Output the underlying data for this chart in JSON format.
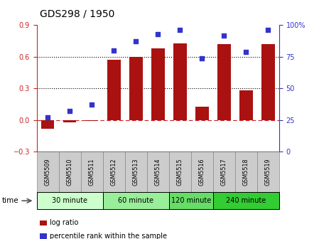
{
  "title": "GDS298 / 1950",
  "samples": [
    "GSM5509",
    "GSM5510",
    "GSM5511",
    "GSM5512",
    "GSM5513",
    "GSM5514",
    "GSM5515",
    "GSM5516",
    "GSM5517",
    "GSM5518",
    "GSM5519"
  ],
  "log_ratio": [
    -0.08,
    -0.02,
    -0.01,
    0.57,
    0.6,
    0.68,
    0.73,
    0.13,
    0.72,
    0.28,
    0.72
  ],
  "percentile": [
    27,
    32,
    37,
    80,
    87,
    93,
    96,
    74,
    92,
    79,
    96
  ],
  "bar_color": "#aa1111",
  "dot_color": "#3333cc",
  "ylim_left": [
    -0.3,
    0.9
  ],
  "ylim_right": [
    0,
    100
  ],
  "yticks_left": [
    -0.3,
    0.0,
    0.3,
    0.6,
    0.9
  ],
  "yticks_right": [
    0,
    25,
    50,
    75,
    100
  ],
  "ytick_labels_right": [
    "0",
    "25",
    "50",
    "75",
    "100%"
  ],
  "hlines": [
    0.3,
    0.6
  ],
  "zero_line_color": "#cc2222",
  "grid_color": "#000000",
  "groups": [
    {
      "label": "30 minute",
      "start": 0,
      "end": 3,
      "color": "#ccffcc"
    },
    {
      "label": "60 minute",
      "start": 3,
      "end": 6,
      "color": "#99ee99"
    },
    {
      "label": "120 minute",
      "start": 6,
      "end": 8,
      "color": "#66dd66"
    },
    {
      "label": "240 minute",
      "start": 8,
      "end": 11,
      "color": "#33cc33"
    }
  ],
  "time_label": "time",
  "legend_items": [
    {
      "label": "log ratio",
      "color": "#aa1111"
    },
    {
      "label": "percentile rank within the sample",
      "color": "#3333cc"
    }
  ],
  "bg_color": "#ffffff",
  "tick_area_color": "#cccccc",
  "title_fontsize": 10,
  "tick_fontsize": 7,
  "label_fontsize": 8
}
